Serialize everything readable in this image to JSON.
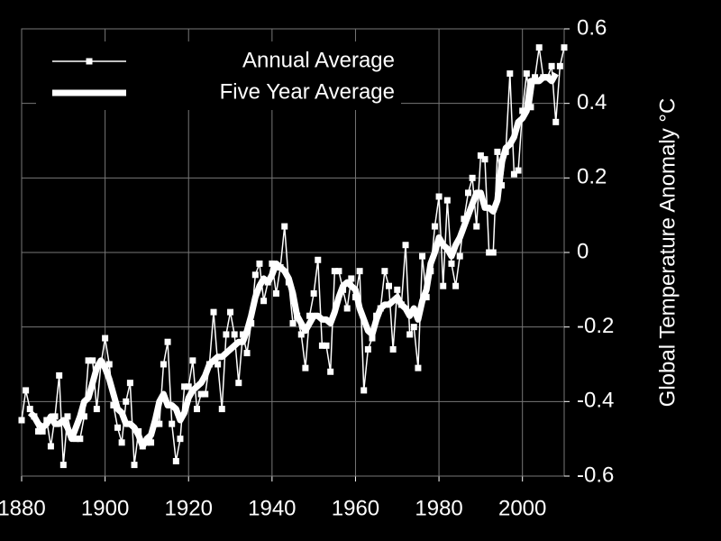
{
  "chart_data": {
    "type": "line",
    "ylabel": "Global Temperature Anomaly °C",
    "x": [
      1880,
      1881,
      1882,
      1883,
      1884,
      1885,
      1886,
      1887,
      1888,
      1889,
      1890,
      1891,
      1892,
      1893,
      1894,
      1895,
      1896,
      1897,
      1898,
      1899,
      1900,
      1901,
      1902,
      1903,
      1904,
      1905,
      1906,
      1907,
      1908,
      1909,
      1910,
      1911,
      1912,
      1913,
      1914,
      1915,
      1916,
      1917,
      1918,
      1919,
      1920,
      1921,
      1922,
      1923,
      1924,
      1925,
      1926,
      1927,
      1928,
      1929,
      1930,
      1931,
      1932,
      1933,
      1934,
      1935,
      1936,
      1937,
      1938,
      1939,
      1940,
      1941,
      1942,
      1943,
      1944,
      1945,
      1946,
      1947,
      1948,
      1949,
      1950,
      1951,
      1952,
      1953,
      1954,
      1955,
      1956,
      1957,
      1958,
      1959,
      1960,
      1961,
      1962,
      1963,
      1964,
      1965,
      1966,
      1967,
      1968,
      1969,
      1970,
      1971,
      1972,
      1973,
      1974,
      1975,
      1976,
      1977,
      1978,
      1979,
      1980,
      1981,
      1982,
      1983,
      1984,
      1985,
      1986,
      1987,
      1988,
      1989,
      1990,
      1991,
      1992,
      1993,
      1994,
      1995,
      1996,
      1997,
      1998,
      1999,
      2000,
      2001,
      2002,
      2003,
      2004,
      2005,
      2006,
      2007,
      2008,
      2009,
      2010
    ],
    "series": [
      {
        "name": "Annual Average",
        "color": "#ffffff",
        "line_width": 1.5,
        "marker": "square",
        "values": [
          -0.45,
          -0.37,
          -0.42,
          -0.44,
          -0.48,
          -0.48,
          -0.45,
          -0.52,
          -0.44,
          -0.33,
          -0.57,
          -0.44,
          -0.49,
          -0.5,
          -0.5,
          -0.44,
          -0.29,
          -0.29,
          -0.42,
          -0.3,
          -0.23,
          -0.3,
          -0.41,
          -0.47,
          -0.51,
          -0.4,
          -0.35,
          -0.57,
          -0.48,
          -0.52,
          -0.51,
          -0.51,
          -0.46,
          -0.46,
          -0.3,
          -0.24,
          -0.46,
          -0.56,
          -0.5,
          -0.36,
          -0.36,
          -0.29,
          -0.42,
          -0.38,
          -0.38,
          -0.3,
          -0.16,
          -0.3,
          -0.42,
          -0.22,
          -0.16,
          -0.22,
          -0.35,
          -0.22,
          -0.27,
          -0.19,
          -0.06,
          -0.03,
          -0.13,
          -0.08,
          -0.03,
          -0.11,
          -0.04,
          0.07,
          -0.08,
          -0.19,
          -0.17,
          -0.22,
          -0.31,
          -0.17,
          -0.11,
          -0.02,
          -0.25,
          -0.25,
          -0.32,
          -0.05,
          -0.05,
          -0.1,
          -0.15,
          -0.07,
          -0.12,
          -0.05,
          -0.37,
          -0.26,
          -0.23,
          -0.17,
          -0.15,
          -0.05,
          -0.09,
          -0.26,
          -0.1,
          -0.14,
          0.02,
          -0.22,
          -0.2,
          -0.31,
          -0.01,
          -0.12,
          -0.05,
          0.07,
          0.15,
          -0.09,
          0.14,
          -0.03,
          -0.09,
          -0.01,
          0.09,
          0.16,
          0.2,
          0.07,
          0.26,
          0.25,
          0.0,
          0.0,
          0.27,
          0.18,
          0.27,
          0.48,
          0.21,
          0.22,
          0.38,
          0.48,
          0.39,
          0.47,
          0.55,
          0.47,
          0.47,
          0.5,
          0.35,
          0.5,
          0.55
        ]
      },
      {
        "name": "Five Year Average",
        "color": "#ffffff",
        "line_width": 7,
        "values": [
          null,
          null,
          -0.43,
          -0.44,
          -0.46,
          -0.47,
          -0.46,
          -0.44,
          -0.46,
          -0.46,
          -0.45,
          -0.47,
          -0.5,
          -0.47,
          -0.44,
          -0.4,
          -0.39,
          -0.35,
          -0.31,
          -0.29,
          -0.31,
          -0.34,
          -0.38,
          -0.42,
          -0.43,
          -0.46,
          -0.46,
          -0.47,
          -0.49,
          -0.52,
          -0.5,
          -0.49,
          -0.45,
          -0.4,
          -0.38,
          -0.41,
          -0.41,
          -0.42,
          -0.45,
          -0.43,
          -0.39,
          -0.37,
          -0.36,
          -0.35,
          -0.33,
          -0.3,
          -0.29,
          -0.28,
          -0.28,
          -0.27,
          -0.26,
          -0.25,
          -0.24,
          -0.24,
          -0.21,
          -0.17,
          -0.12,
          -0.09,
          -0.07,
          -0.08,
          -0.06,
          -0.03,
          -0.04,
          -0.05,
          -0.07,
          -0.11,
          -0.17,
          -0.19,
          -0.21,
          -0.19,
          -0.17,
          -0.17,
          -0.18,
          -0.18,
          -0.19,
          -0.16,
          -0.12,
          -0.09,
          -0.08,
          -0.09,
          -0.1,
          -0.15,
          -0.18,
          -0.21,
          -0.22,
          -0.18,
          -0.15,
          -0.14,
          -0.14,
          -0.13,
          -0.12,
          -0.14,
          -0.15,
          -0.17,
          -0.15,
          -0.18,
          -0.13,
          -0.1,
          -0.03,
          0.0,
          0.04,
          0.02,
          0.01,
          -0.01,
          0.02,
          0.04,
          0.07,
          0.1,
          0.13,
          0.16,
          0.16,
          0.12,
          0.12,
          0.11,
          0.14,
          0.24,
          0.28,
          0.29,
          0.31,
          0.35,
          0.36,
          0.38,
          0.46,
          0.46,
          0.46,
          0.47,
          0.47,
          0.46,
          0.48,
          null,
          null
        ]
      }
    ],
    "xlim": [
      1880,
      2010
    ],
    "xticks": [
      1880,
      1900,
      1920,
      1940,
      1960,
      1980,
      2000
    ],
    "ylim": [
      -0.6,
      0.6
    ],
    "yticks": [
      -0.6,
      -0.4,
      -0.2,
      0,
      0.2,
      0.4,
      0.6
    ],
    "grid": true,
    "legend": "upper left",
    "background": "#000000",
    "grid_color": "#777777"
  }
}
